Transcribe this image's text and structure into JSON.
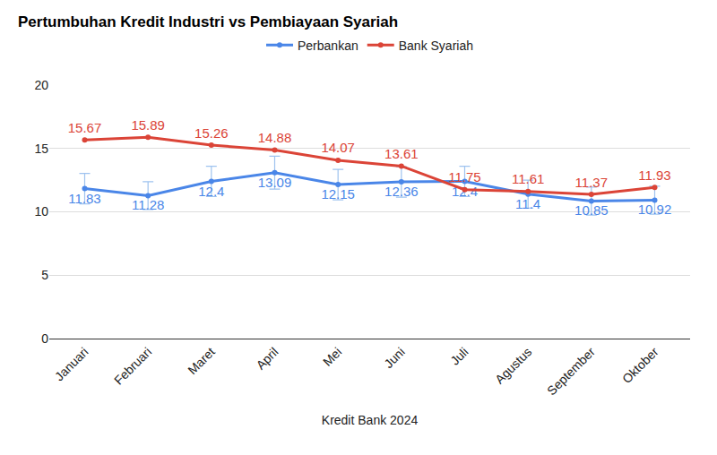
{
  "chart_data": {
    "type": "line",
    "title": "Pertumbuhan Kredit Industri vs Pembiayaan Syariah",
    "x_label": "Kredit Bank 2024",
    "categories": [
      "Januari",
      "Februari",
      "Maret",
      "April",
      "Mei",
      "Juni",
      "Juli",
      "Agustus",
      "September",
      "Oktober"
    ],
    "series": [
      {
        "name": "Perbankan",
        "color": "#4a86e8",
        "marker": "circle",
        "values": [
          11.83,
          11.28,
          12.4,
          13.09,
          12.15,
          12.36,
          12.4,
          11.4,
          10.85,
          10.92
        ],
        "errors": [
          1.2,
          1.1,
          1.2,
          1.3,
          1.2,
          1.2,
          1.2,
          1.1,
          1.1,
          1.1
        ]
      },
      {
        "name": "Bank Syariah",
        "color": "#db4437",
        "marker": "circle",
        "values": [
          15.67,
          15.89,
          15.26,
          14.88,
          14.07,
          13.61,
          11.75,
          11.61,
          11.37,
          11.93
        ]
      }
    ],
    "ylim": [
      0,
      20
    ],
    "yticks": [
      0,
      5,
      10,
      15,
      20
    ],
    "grid": true,
    "legend": "top",
    "data_labels": true
  }
}
